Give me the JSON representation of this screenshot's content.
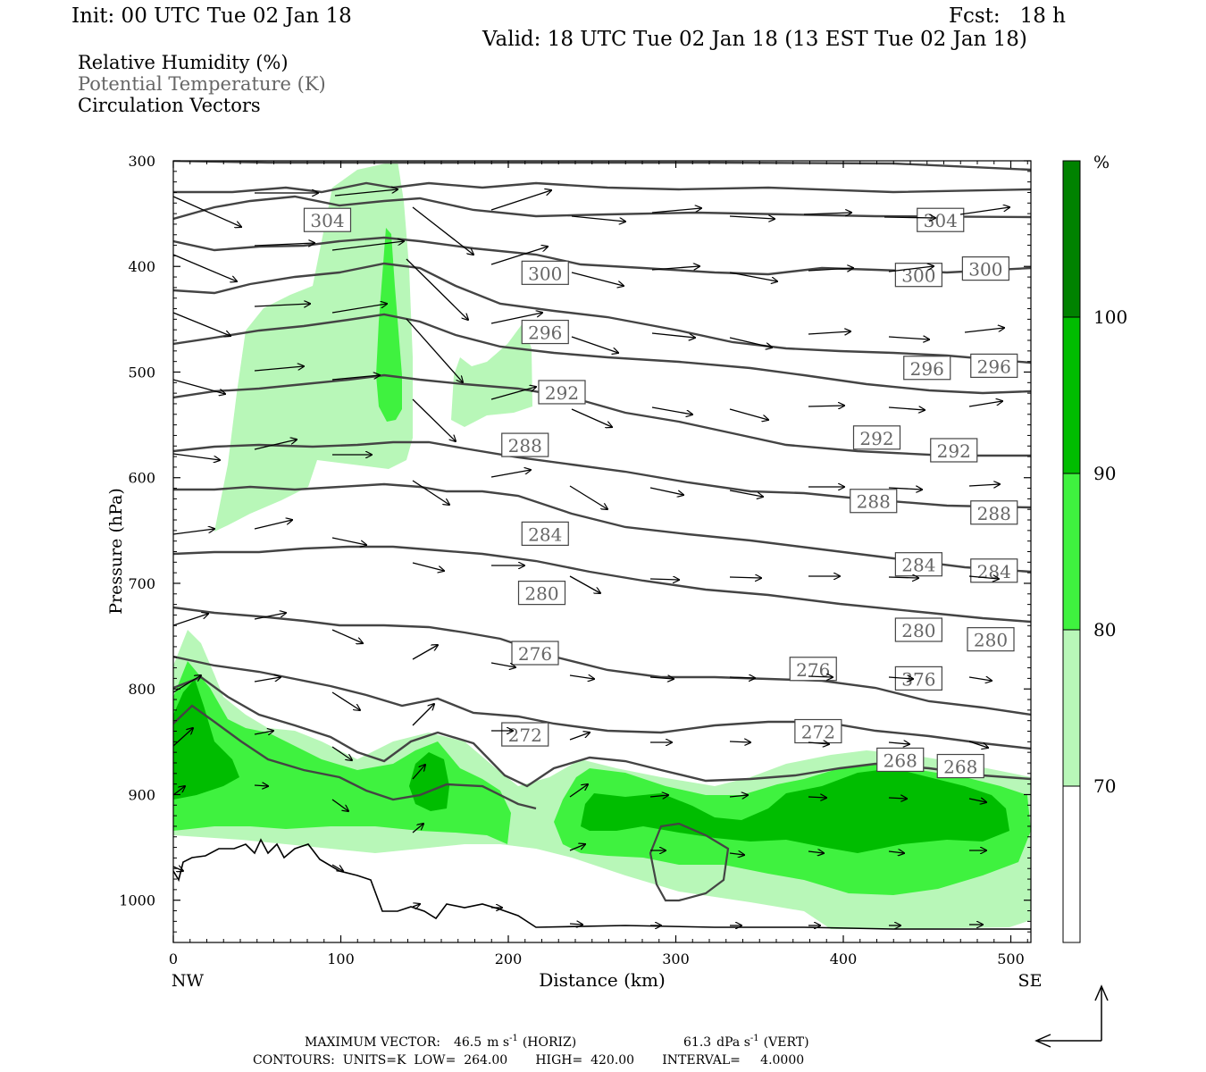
{
  "header": {
    "init": "Init: 00 UTC Tue 02 Jan 18",
    "fcst": "Fcst:   18 h",
    "valid": "Valid: 18 UTC Tue 02 Jan 18 (13 EST Tue 02 Jan 18)"
  },
  "legend_fields": [
    {
      "label": "Relative Humidity (%)",
      "color": "#000000"
    },
    {
      "label": "Potential Temperature (K)",
      "color": "#666666"
    },
    {
      "label": "Circulation Vectors",
      "color": "#000000"
    }
  ],
  "chart_data": {
    "type": "heatmap",
    "title": "",
    "xlabel": "Distance (km)",
    "ylabel": "Pressure (hPa)",
    "xlim": [
      0,
      512
    ],
    "ylim": [
      1040,
      300
    ],
    "x_ticks": [
      0,
      100,
      200,
      300,
      400,
      500
    ],
    "y_ticks": [
      300,
      400,
      500,
      600,
      700,
      800,
      900,
      1000
    ],
    "x_end_labels": {
      "left": "NW",
      "right": "SE"
    },
    "colorbar": {
      "unit": "%",
      "levels": [
        70,
        80,
        90,
        100
      ],
      "colors": [
        "#ffffff",
        "#b8f7b8",
        "#3ff23f",
        "#00bd00",
        "#008200"
      ]
    },
    "theta_contour_labels": [
      {
        "x": 92,
        "p": 356,
        "text": "304"
      },
      {
        "x": 458,
        "p": 356,
        "text": "304"
      },
      {
        "x": 222,
        "p": 406,
        "text": "300"
      },
      {
        "x": 445,
        "p": 408,
        "text": "300"
      },
      {
        "x": 485,
        "p": 402,
        "text": "300"
      },
      {
        "x": 222,
        "p": 462,
        "text": "296"
      },
      {
        "x": 450,
        "p": 496,
        "text": "296"
      },
      {
        "x": 490,
        "p": 494,
        "text": "296"
      },
      {
        "x": 232,
        "p": 519,
        "text": "292"
      },
      {
        "x": 420,
        "p": 562,
        "text": "292"
      },
      {
        "x": 466,
        "p": 574,
        "text": "292"
      },
      {
        "x": 210,
        "p": 569,
        "text": "288"
      },
      {
        "x": 418,
        "p": 622,
        "text": "288"
      },
      {
        "x": 490,
        "p": 633,
        "text": "288"
      },
      {
        "x": 222,
        "p": 653,
        "text": "284"
      },
      {
        "x": 445,
        "p": 682,
        "text": "284"
      },
      {
        "x": 490,
        "p": 688,
        "text": "284"
      },
      {
        "x": 220,
        "p": 709,
        "text": "280"
      },
      {
        "x": 445,
        "p": 744,
        "text": "280"
      },
      {
        "x": 488,
        "p": 753,
        "text": "280"
      },
      {
        "x": 216,
        "p": 766,
        "text": "276"
      },
      {
        "x": 382,
        "p": 781,
        "text": "276"
      },
      {
        "x": 445,
        "p": 790,
        "text": "376"
      },
      {
        "x": 210,
        "p": 843,
        "text": "272"
      },
      {
        "x": 385,
        "p": 840,
        "text": "272"
      },
      {
        "x": 434,
        "p": 867,
        "text": "268"
      },
      {
        "x": 470,
        "p": 873,
        "text": "268"
      }
    ],
    "footer": {
      "max_vector_prefix": "MAXIMUM VECTOR:",
      "horiz_value": "46.5",
      "horiz_units": "m s",
      "horiz_tag": "(HORIZ)",
      "vert_value": "61.3",
      "vert_units": "dPa s",
      "vert_tag": "(VERT)",
      "exponent": "-1",
      "contours": "CONTOURS:  UNITS=K  LOW=  264.00       HIGH=  420.00       INTERVAL=     4.0000"
    }
  }
}
